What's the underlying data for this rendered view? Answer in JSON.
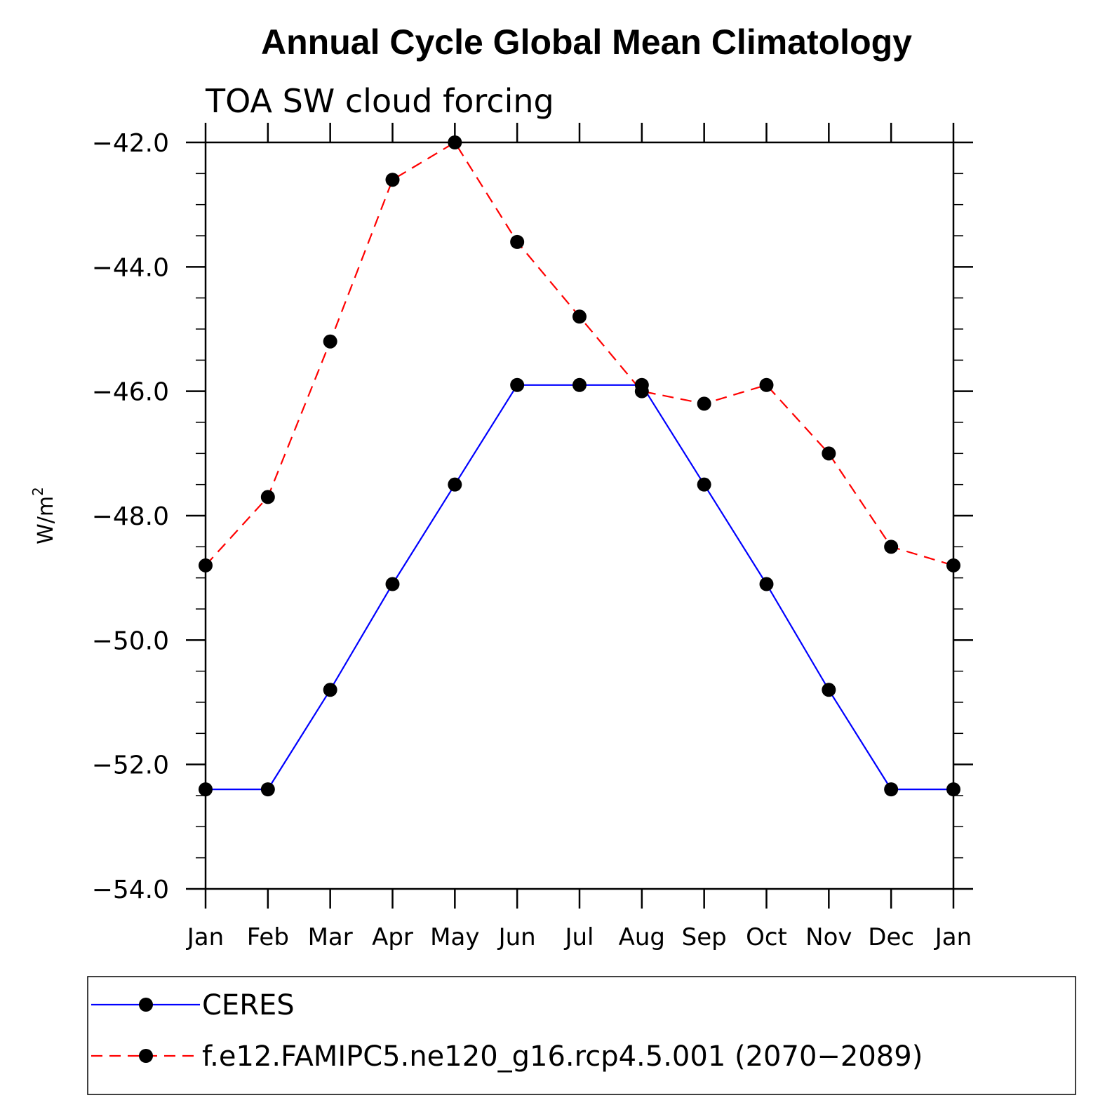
{
  "chart_data": {
    "type": "line",
    "title": "Annual Cycle Global Mean Climatology",
    "subtitle": "TOA SW cloud forcing",
    "ylabel_base": "W/m",
    "ylabel_sup": "2",
    "xlabel": "",
    "categories": [
      "Jan",
      "Feb",
      "Mar",
      "Apr",
      "May",
      "Jun",
      "Jul",
      "Aug",
      "Sep",
      "Oct",
      "Nov",
      "Dec",
      "Jan"
    ],
    "ylim": [
      -54.0,
      -42.0
    ],
    "yticks": [
      -42.0,
      -44.0,
      -46.0,
      -48.0,
      -50.0,
      -52.0,
      -54.0
    ],
    "ytick_labels": [
      "−42.0",
      "−44.0",
      "−46.0",
      "−48.0",
      "−50.0",
      "−52.0",
      "−54.0"
    ],
    "grid": false,
    "legend_position": "bottom",
    "series": [
      {
        "name": "CERES",
        "color": "#0000ff",
        "dash": "solid",
        "values": [
          -52.4,
          -52.4,
          -50.8,
          -49.1,
          -47.5,
          -45.9,
          -45.9,
          -45.9,
          -47.5,
          -49.1,
          -50.8,
          -52.4,
          -52.4
        ]
      },
      {
        "name": "f.e12.FAMIPC5.ne120_g16.rcp4.5.001 (2070−2089)",
        "color": "#ff0000",
        "dash": "dashed",
        "values": [
          -48.8,
          -47.7,
          -45.2,
          -42.6,
          -42.0,
          -43.6,
          -44.8,
          -46.0,
          -46.2,
          -45.9,
          -47.0,
          -48.5,
          -48.8
        ]
      }
    ]
  }
}
